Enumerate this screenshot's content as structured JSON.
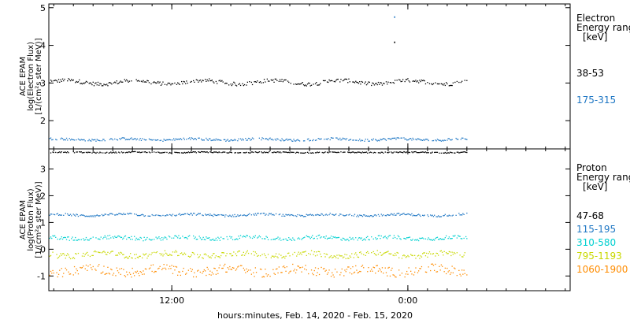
{
  "chart_data": [
    {
      "type": "scatter",
      "panel": "electron",
      "ylabel_lines": [
        "ACE EPAM",
        "log(Electron Flux)",
        "[1/(cm²s ster MeV)]"
      ],
      "ylim": [
        1.25,
        5.1
      ],
      "y_ticks": [
        2,
        3,
        4,
        5
      ],
      "legend_title": [
        "Electron",
        "Energy ranges",
        "[keV]"
      ],
      "series": [
        {
          "name": "38-53",
          "color": "#000000",
          "base": 3.02,
          "amp": 0.05,
          "noise": 0.05
        },
        {
          "name": "175-315",
          "color": "#1f77c4",
          "base": 1.5,
          "amp": 0.02,
          "noise": 0.03
        }
      ],
      "outliers": [
        {
          "x": 35.1,
          "y": 4.75,
          "color": "#1f77c4"
        },
        {
          "x": 35.1,
          "y": 4.08,
          "color": "#000000"
        }
      ]
    },
    {
      "type": "scatter",
      "panel": "proton",
      "ylabel_lines": [
        "ACE EPAM",
        "log(Proton Flux)",
        "[1/(cm²s ster MeV)]"
      ],
      "ylim": [
        -1.55,
        3.75
      ],
      "y_ticks": [
        -1,
        0,
        1,
        2,
        3
      ],
      "legend_title": [
        "Proton",
        "Energy ranges",
        "[keV]"
      ],
      "series": [
        {
          "name": "47-68",
          "color": "#000000",
          "base": 3.62,
          "amp": 0.01,
          "noise": 0.02
        },
        {
          "name": "115-195",
          "color": "#1f77c4",
          "base": 1.28,
          "amp": 0.03,
          "noise": 0.04
        },
        {
          "name": "310-580",
          "color": "#00d0d0",
          "base": 0.42,
          "amp": 0.04,
          "noise": 0.07
        },
        {
          "name": "795-1193",
          "color": "#c8d800",
          "base": -0.2,
          "amp": 0.06,
          "noise": 0.1
        },
        {
          "name": "1060-1900",
          "color": "#ff8c00",
          "base": -0.8,
          "amp": 0.08,
          "noise": 0.17
        }
      ]
    }
  ],
  "x_axis": {
    "label": "hours:minutes, Feb. 14, 2020 - Feb. 15, 2020",
    "range_hours": [
      0,
      53
    ],
    "data_end_hours": 42.5,
    "ticks": [
      {
        "hour": 12.5,
        "label": "12:00"
      },
      {
        "hour": 36.5,
        "label": "0:00"
      }
    ]
  }
}
